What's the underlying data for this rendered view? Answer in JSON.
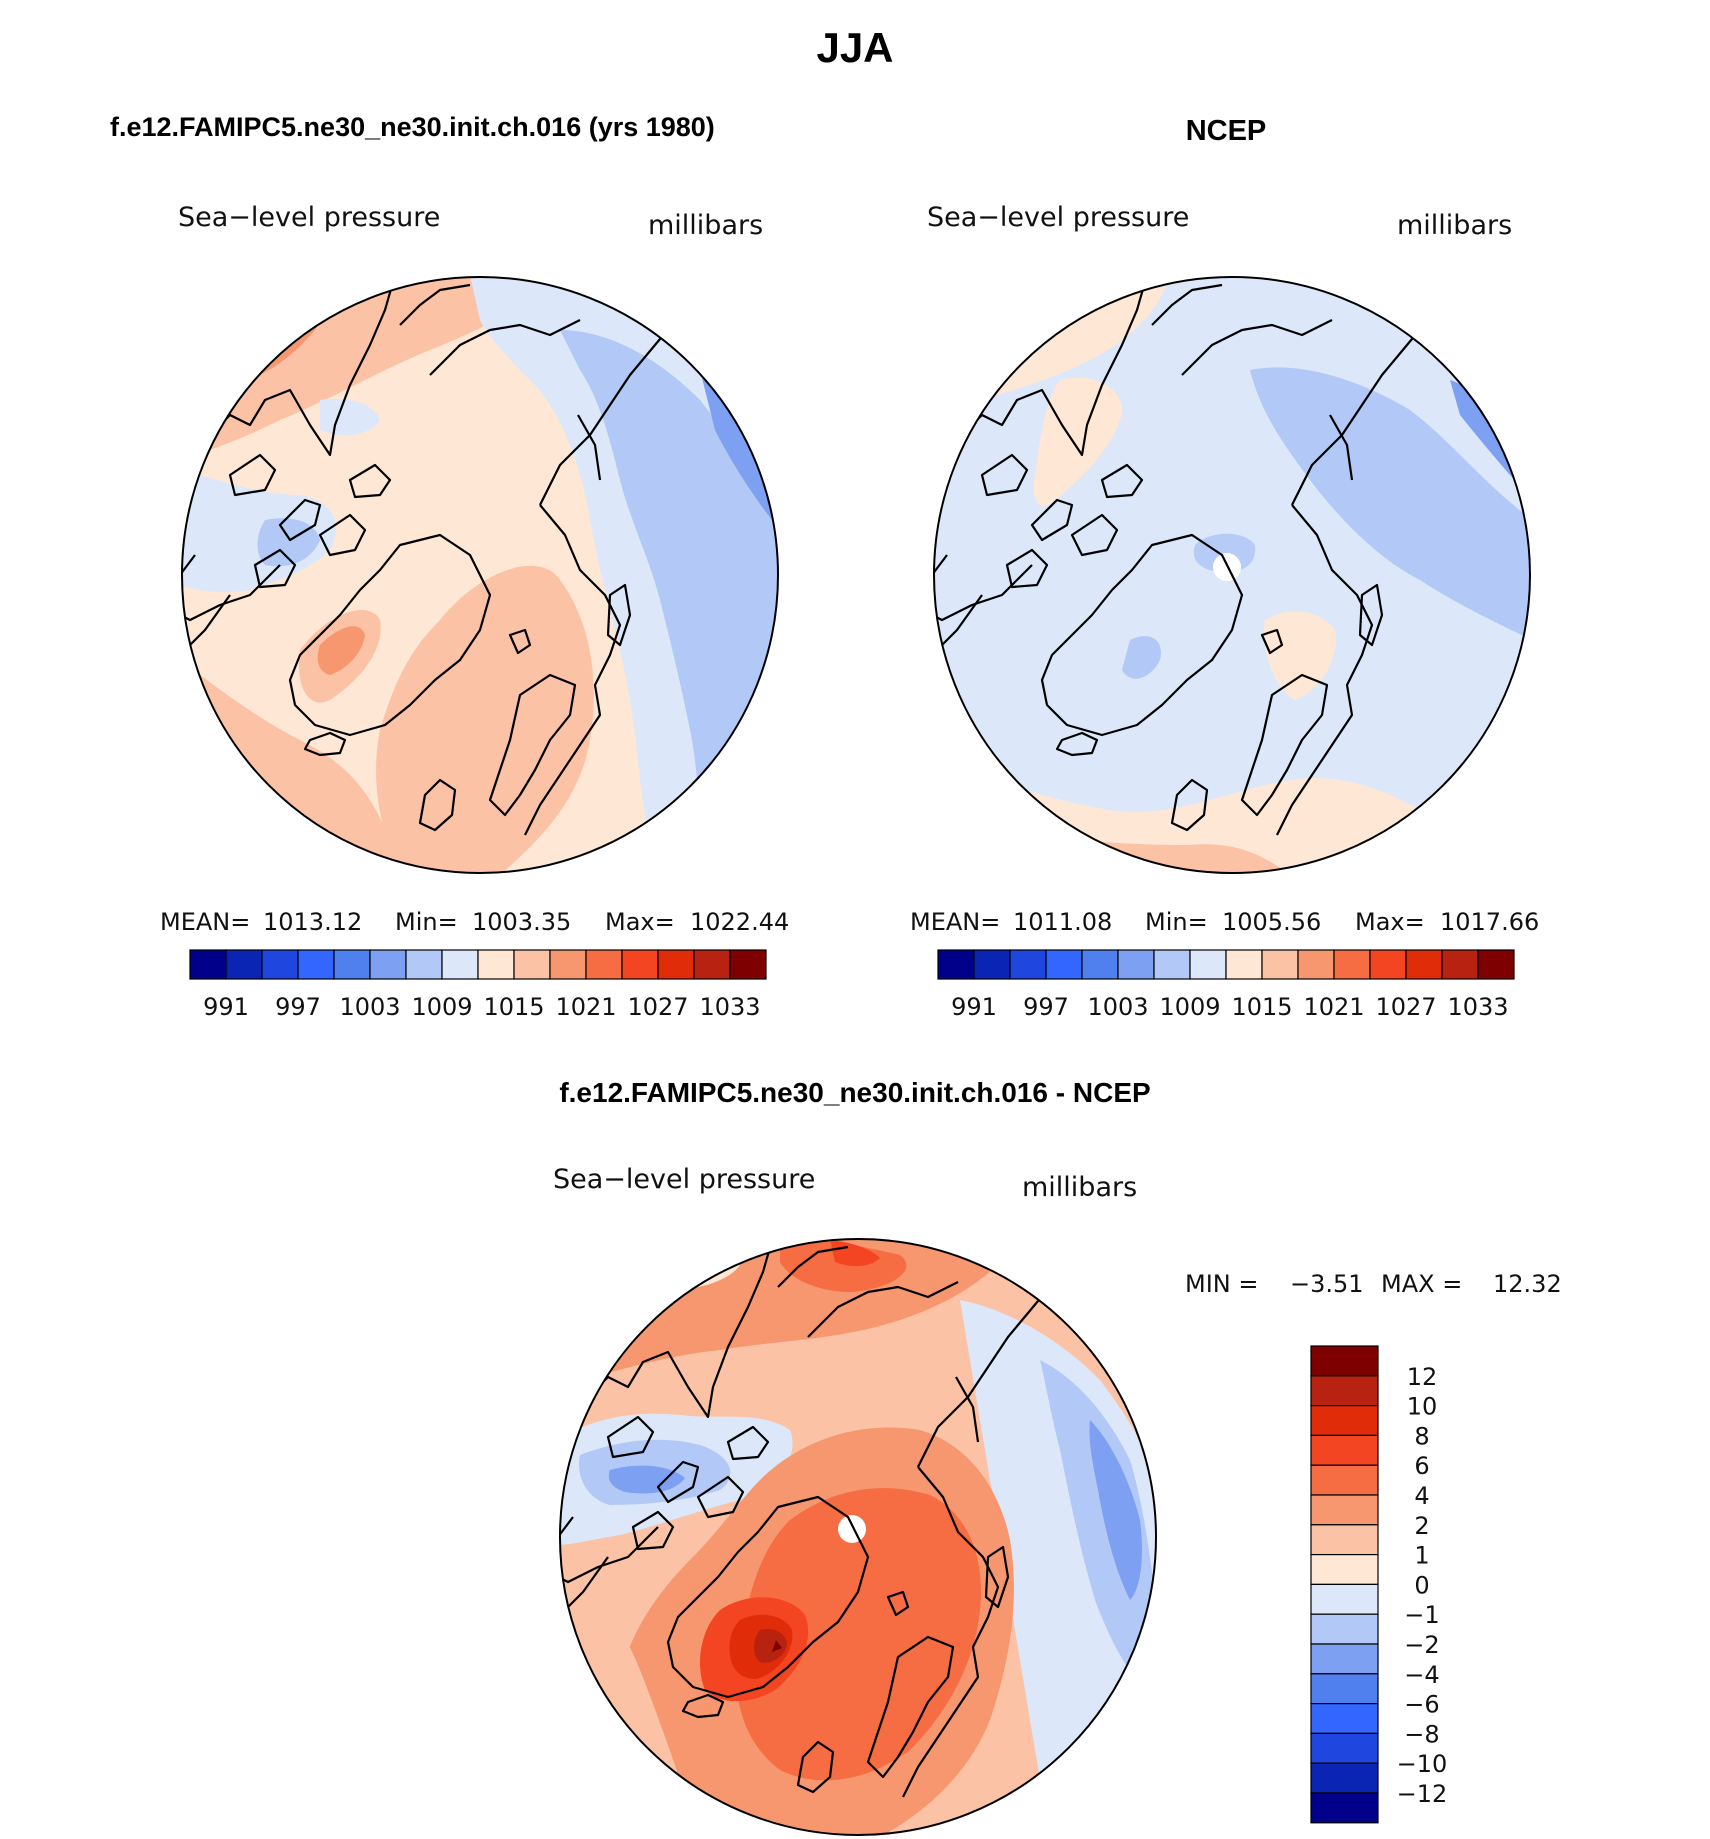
{
  "figure": {
    "season": "JJA",
    "panels": [
      {
        "id": "model",
        "title": "f.e12.FAMIPC5.ne30_ne30.init.ch.016 (yrs 1980)",
        "field_label": "Sea−level pressure",
        "units_label": "millibars",
        "stats": {
          "mean_label": "MEAN=",
          "mean": "1013.12",
          "min_label": "Min=",
          "min": "1003.35",
          "max_label": "Max=",
          "max": "1022.44"
        },
        "colorbar_labels": [
          "991",
          "997",
          "1003",
          "1009",
          "1015",
          "1021",
          "1027",
          "1033"
        ]
      },
      {
        "id": "obs",
        "title": "NCEP",
        "field_label": "Sea−level pressure",
        "units_label": "millibars",
        "stats": {
          "mean_label": "MEAN=",
          "mean": "1011.08",
          "min_label": "Min=",
          "min": "1005.56",
          "max_label": "Max=",
          "max": "1017.66"
        },
        "colorbar_labels": [
          "991",
          "997",
          "1003",
          "1009",
          "1015",
          "1021",
          "1027",
          "1033"
        ]
      },
      {
        "id": "diff",
        "title": "f.e12.FAMIPC5.ne30_ne30.init.ch.016 - NCEP",
        "field_label": "Sea−level pressure",
        "units_label": "millibars",
        "stats": {
          "min_label": "MIN =",
          "min": "−3.51",
          "max_label": "MAX =",
          "max": "12.32"
        },
        "colorbar_labels": [
          "12",
          "10",
          "8",
          "6",
          "4",
          "2",
          "1",
          "0",
          "−1",
          "−2",
          "−4",
          "−6",
          "−8",
          "−10",
          "−12"
        ]
      }
    ]
  },
  "colors": {
    "full_scale": [
      "#00008b",
      "#0a25b4",
      "#1f47e0",
      "#3366ff",
      "#5080ee",
      "#7ea0f2",
      "#b2c8f6",
      "#dce8f9",
      "#fee7d5",
      "#fbc2a5",
      "#f6976f",
      "#f66c43",
      "#f44522",
      "#e02c08",
      "#b82210",
      "#7f0000"
    ],
    "diff_scale": [
      "#7f0000",
      "#b82210",
      "#e02c08",
      "#f44522",
      "#f66c43",
      "#f6976f",
      "#fbc2a5",
      "#fee7d5",
      "#dce8f9",
      "#b2c8f6",
      "#7ea0f2",
      "#5080ee",
      "#3366ff",
      "#1f47e0",
      "#0a25b4",
      "#00008b"
    ],
    "coastline": "#000000",
    "missing": "#ffffff"
  }
}
